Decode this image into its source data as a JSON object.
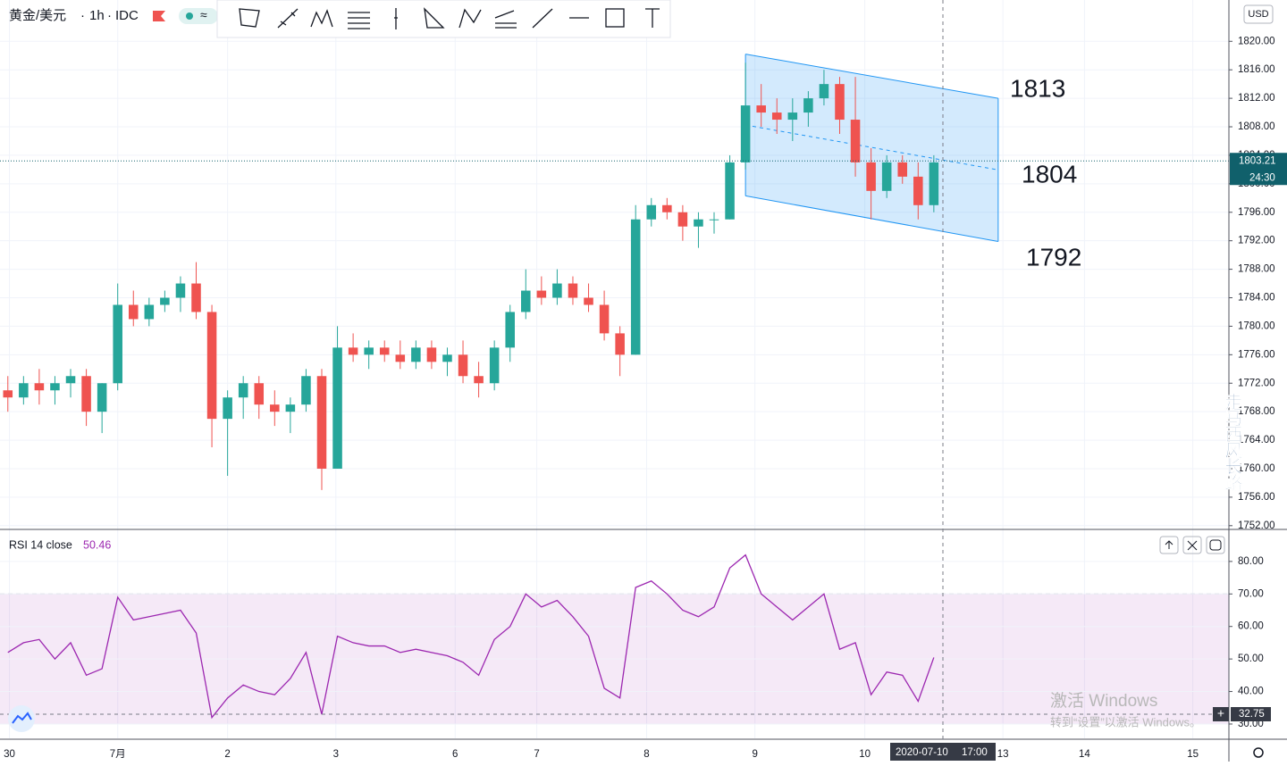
{
  "header": {
    "symbol": "黄金/美元",
    "interval": "1h",
    "source": "IDC",
    "currency": "USD",
    "countdown": "24:30"
  },
  "crosshair": {
    "date": "2020-07-10",
    "time": "17:00",
    "rsi_value": 32.75
  },
  "watermark": "走马西风长路",
  "os_notice": {
    "title": "激活 Windows",
    "text": "转到“设置”以激活 Windows。"
  },
  "chart_data": [
    {
      "type": "candlestick",
      "x": [
        0.5,
        1.5,
        2.5,
        3.5,
        4.5,
        5.5,
        6.5,
        7.5,
        8.5,
        9.5,
        10.5,
        11.5,
        12.5,
        13.5,
        14.5,
        15.5,
        16.5,
        17.5,
        18.5,
        19.5,
        20.5,
        21.5,
        22.5,
        23.5,
        24.5,
        25.5,
        26.5,
        27.5,
        28.5,
        29.5,
        30.5,
        31.5,
        32.5,
        33.5,
        34.5,
        35.5,
        36.5,
        37.5,
        38.5,
        39.5,
        40.5,
        41.5,
        42.5,
        43.5,
        44.5,
        45.5,
        46.5,
        47.5,
        48.5,
        49.5,
        50.5,
        51.5,
        52.5,
        53.5,
        54.5,
        55.5,
        56.5,
        57.5,
        58.5,
        59.5
      ],
      "open": [
        1771,
        1770,
        1772,
        1771,
        1772,
        1773,
        1768,
        1772,
        1783,
        1781,
        1783,
        1784,
        1786,
        1782,
        1767,
        1770,
        1772,
        1769,
        1768,
        1769,
        1773,
        1760,
        1777,
        1776,
        1777,
        1776,
        1775,
        1777,
        1775,
        1776,
        1773,
        1772,
        1777,
        1782,
        1785,
        1784,
        1786,
        1784,
        1783,
        1779,
        1776,
        1795,
        1797,
        1796,
        1794,
        1795,
        1795,
        1803,
        1811,
        1810,
        1809,
        1810,
        1812,
        1814,
        1809,
        1803,
        1799,
        1803,
        1801,
        1797
      ],
      "high": [
        1773,
        1773,
        1774,
        1773,
        1774,
        1774,
        1772,
        1786,
        1785,
        1784,
        1785,
        1787,
        1789,
        1783,
        1771,
        1773,
        1773,
        1771,
        1770,
        1774,
        1774,
        1780,
        1779,
        1778,
        1778,
        1778,
        1778,
        1778,
        1777,
        1778,
        1775,
        1778,
        1783,
        1788,
        1787,
        1788,
        1787,
        1786,
        1785,
        1780,
        1797,
        1798,
        1798,
        1797,
        1796,
        1796,
        1804,
        1817,
        1814,
        1812,
        1812,
        1813,
        1816,
        1815,
        1815,
        1805,
        1804,
        1804,
        1803,
        1804
      ],
      "low": [
        1768,
        1769,
        1769,
        1769,
        1770,
        1766,
        1765,
        1771,
        1780,
        1780,
        1782,
        1782,
        1781,
        1763,
        1759,
        1767,
        1767,
        1766,
        1765,
        1768,
        1757,
        1760,
        1775,
        1774,
        1775,
        1774,
        1774,
        1774,
        1773,
        1772,
        1770,
        1771,
        1775,
        1781,
        1783,
        1783,
        1783,
        1782,
        1778,
        1773,
        1776,
        1794,
        1795,
        1792,
        1791,
        1793,
        1795,
        1802,
        1808,
        1807,
        1806,
        1808,
        1811,
        1807,
        1801,
        1795,
        1798,
        1800,
        1795,
        1796
      ],
      "close": [
        1770,
        1772,
        1771,
        1772,
        1773,
        1768,
        1772,
        1783,
        1781,
        1783,
        1784,
        1786,
        1782,
        1767,
        1770,
        1772,
        1769,
        1768,
        1769,
        1773,
        1760,
        1777,
        1776,
        1777,
        1776,
        1775,
        1777,
        1775,
        1776,
        1773,
        1772,
        1777,
        1782,
        1785,
        1784,
        1786,
        1784,
        1783,
        1779,
        1776,
        1795,
        1797,
        1796,
        1794,
        1795,
        1795,
        1803,
        1811,
        1810,
        1809,
        1810,
        1812,
        1814,
        1809,
        1803,
        1799,
        1803,
        1801,
        1797,
        1803
      ],
      "up_color": "#26a69a",
      "down_color": "#ef5350",
      "xlim": [
        0,
        78.3
      ],
      "xticks": [
        {
          "value": 0.6,
          "label": "30"
        },
        {
          "value": 7.5,
          "label": "7月"
        },
        {
          "value": 14.5,
          "label": "2"
        },
        {
          "value": 21.4,
          "label": "3"
        },
        {
          "value": 29,
          "label": "6"
        },
        {
          "value": 34.2,
          "label": "7"
        },
        {
          "value": 41.2,
          "label": "8"
        },
        {
          "value": 48.1,
          "label": "9"
        },
        {
          "value": 55.1,
          "label": "10"
        },
        {
          "value": 63.9,
          "label": "13"
        },
        {
          "value": 69.1,
          "label": "14"
        },
        {
          "value": 76,
          "label": "15"
        }
      ],
      "ylim": [
        1751.6,
        1825.8
      ],
      "yticks": [
        {
          "value": 1752,
          "label": "1752.00"
        },
        {
          "value": 1756,
          "label": "1756.00"
        },
        {
          "value": 1760,
          "label": "1760.00"
        },
        {
          "value": 1764,
          "label": "1764.00"
        },
        {
          "value": 1768,
          "label": "1768.00"
        },
        {
          "value": 1772,
          "label": "1772.00"
        },
        {
          "value": 1776,
          "label": "1776.00"
        },
        {
          "value": 1780,
          "label": "1780.00"
        },
        {
          "value": 1784,
          "label": "1784.00"
        },
        {
          "value": 1788,
          "label": "1788.00"
        },
        {
          "value": 1792,
          "label": "1792.00"
        },
        {
          "value": 1796,
          "label": "1796.00"
        },
        {
          "value": 1800,
          "label": "1800.00"
        },
        {
          "value": 1804,
          "label": "1804.00"
        },
        {
          "value": 1808,
          "label": "1808.00"
        },
        {
          "value": 1812,
          "label": "1812.00"
        },
        {
          "value": 1816,
          "label": "1816.00"
        },
        {
          "value": 1820,
          "label": "1820.00"
        }
      ],
      "grid": true,
      "last_price": 1803.21,
      "channel": {
        "x": [
          47.5,
          63.6
        ],
        "upper": [
          1818.2,
          1812.0
        ],
        "lower": [
          1798.3,
          1791.9
        ],
        "color": "#2196f3"
      },
      "annotations": [
        "1813",
        "1804",
        "1792"
      ]
    },
    {
      "type": "line",
      "title": "RSI 14 close",
      "color": "#9c27b0",
      "x": [
        0.5,
        1.5,
        2.5,
        3.5,
        4.5,
        5.5,
        6.5,
        7.5,
        8.5,
        9.5,
        10.5,
        11.5,
        12.5,
        13.5,
        14.5,
        15.5,
        16.5,
        17.5,
        18.5,
        19.5,
        20.5,
        21.5,
        22.5,
        23.5,
        24.5,
        25.5,
        26.5,
        27.5,
        28.5,
        29.5,
        30.5,
        31.5,
        32.5,
        33.5,
        34.5,
        35.5,
        36.5,
        37.5,
        38.5,
        39.5,
        40.5,
        41.5,
        42.5,
        43.5,
        44.5,
        45.5,
        46.5,
        47.5,
        48.5,
        49.5,
        50.5,
        51.5,
        52.5,
        53.5,
        54.5,
        55.5,
        56.5,
        57.5,
        58.5,
        59.5
      ],
      "values": [
        52,
        55,
        56,
        50,
        55,
        45,
        47,
        69,
        62,
        63,
        64,
        65,
        58,
        32,
        38,
        42,
        40,
        39,
        44,
        52,
        33,
        57,
        55,
        54,
        54,
        52,
        53,
        52,
        51,
        49,
        45,
        56,
        60,
        70,
        66,
        68,
        63,
        57,
        41,
        38,
        72,
        74,
        70,
        65,
        63,
        66,
        78,
        82,
        70,
        66,
        62,
        66,
        70,
        53,
        55,
        39,
        46,
        45,
        37,
        50.46
      ],
      "xlim": [
        0,
        78.3
      ],
      "ylim": [
        25.6,
        89.3
      ],
      "yticks": [
        {
          "value": 30,
          "label": "30.00"
        },
        {
          "value": 40,
          "label": "40.00"
        },
        {
          "value": 50,
          "label": "50.00"
        },
        {
          "value": 60,
          "label": "60.00"
        },
        {
          "value": 70,
          "label": "70.00"
        },
        {
          "value": 80,
          "label": "80.00"
        }
      ],
      "band": [
        30,
        70
      ],
      "band_color": "#9c27b0"
    }
  ]
}
